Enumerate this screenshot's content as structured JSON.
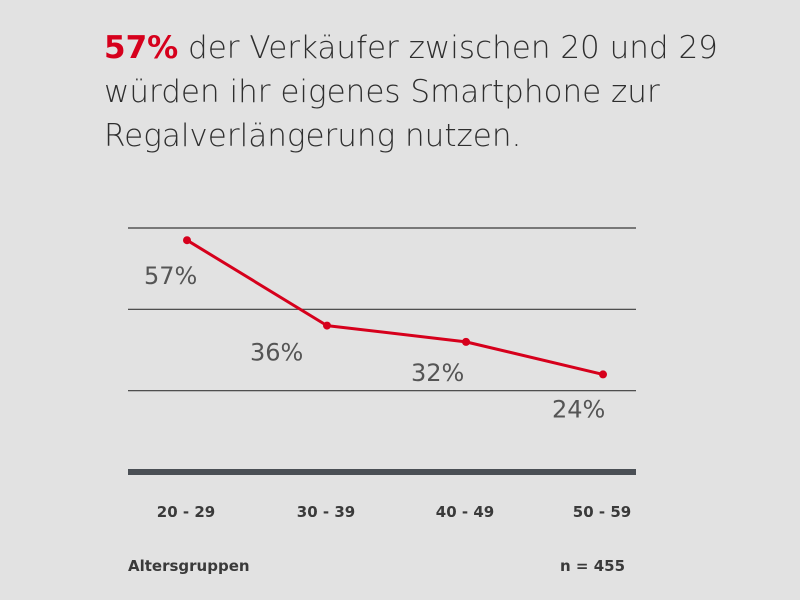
{
  "headline": {
    "highlight": "57%",
    "text": " der Verkäufer zwischen 20 und 29 würden ihr eigenes Smartphone zur Regalverlängerung nutzen."
  },
  "colors": {
    "accent": "#d6001c",
    "grid": "#3a3a3a",
    "text": "#2e2e2e",
    "background": "#e2e2e2"
  },
  "footer": {
    "axis_title": "Altersgruppen",
    "sample": "n = 455"
  },
  "chart_data": {
    "type": "line",
    "categories": [
      "20 - 29",
      "30 - 39",
      "40 - 49",
      "50 - 59"
    ],
    "values": [
      57,
      36,
      32,
      24
    ],
    "value_labels": [
      "57%",
      "36%",
      "32%",
      "24%"
    ],
    "ylim": [
      0,
      60
    ],
    "unit": "%",
    "grid": true
  }
}
